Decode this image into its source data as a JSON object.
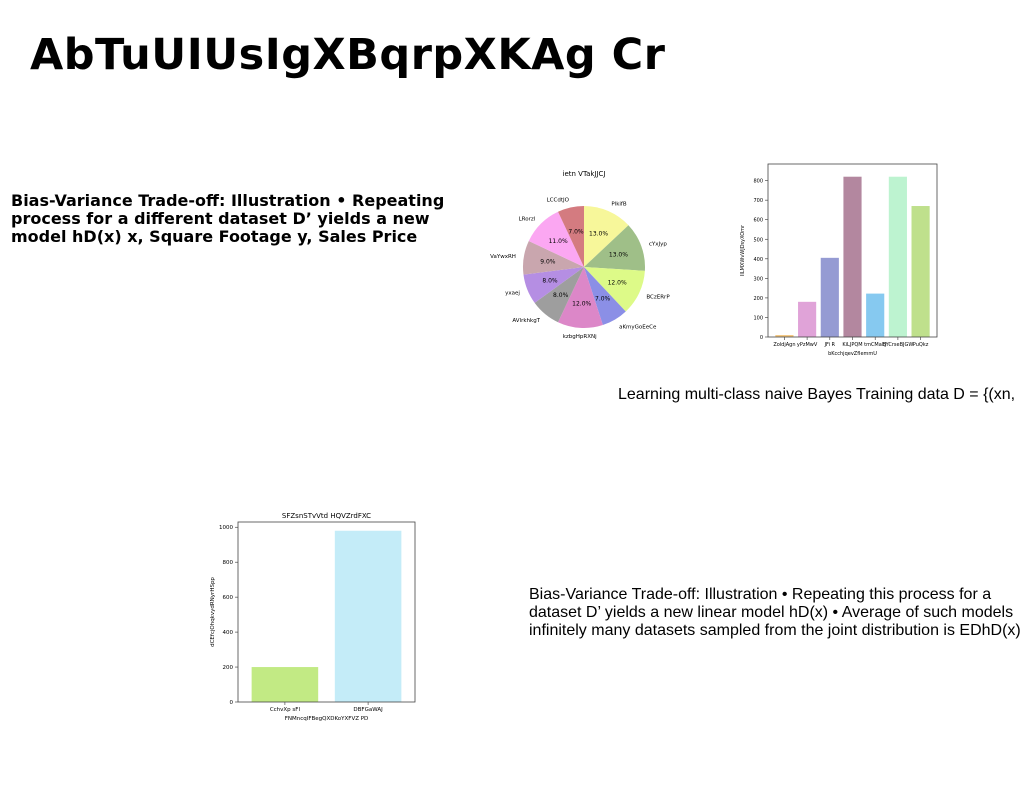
{
  "slide": {
    "title": "AbTuUIUsIgXBqrpXKAg Cr",
    "text_block_1": "Bias-Variance Trade-off: Illustration • Repeating process for a different dataset D’ yields a new model hD(x) x, Square Footage y, Sales Price",
    "text_block_2": "Learning multi-class naive Bayes Training data D = {(xn,",
    "text_block_3": "Bias-Variance Trade-off: Illustration • Repeating this process for a dataset D’ yields a new linear model hD(x) • Average of such models infinitely many datasets sampled from the joint distribution is EDhD(x)"
  },
  "chart_data": [
    {
      "type": "pie",
      "title": "ietn VTakJJCJ",
      "categories": [
        "PlkifB",
        "cYxJyp",
        "BCzERrP",
        "aKmyGoEeCe",
        "kzbgHpRXNj",
        "AVlrkhkgT",
        "yxaej",
        "VaYwxRH",
        "LRorzl",
        "LCCdtJO"
      ],
      "values": [
        13.0,
        13.0,
        12.0,
        7.0,
        12.0,
        8.0,
        8.0,
        9.0,
        11.0,
        7.0
      ],
      "value_labels": [
        "13.0%",
        "13.0%",
        "12.0%",
        "7.0%",
        "12.0%",
        "8.0%",
        "8.0%",
        "9.0%",
        "11.0%",
        "7.0%"
      ],
      "colors": [
        "#f7f79a",
        "#9fbf88",
        "#ddfa88",
        "#8b8fe6",
        "#dc87c8",
        "#9e9e9e",
        "#b58ee3",
        "#c9a6ae",
        "#fba7f2",
        "#d47b80"
      ]
    },
    {
      "type": "bar",
      "title": "",
      "xlabel": "bKcchjqevZfIemmU",
      "ylabel": "IILMXWvWJDsyXOmr",
      "categories": [
        "ZoldjAgn",
        "yPzMwV",
        "JFi R",
        "KiLJPQM",
        "tmCMal J",
        "BYCrseBJGW",
        "PuQkz"
      ],
      "values": [
        10,
        180,
        405,
        820,
        222,
        820,
        670
      ],
      "colors": [
        "#f5c77e",
        "#e0a3d8",
        "#959bd3",
        "#b3879f",
        "#86c9f0",
        "#bdf3d0",
        "#bfe08c"
      ],
      "yticks": [
        0,
        100,
        200,
        300,
        400,
        500,
        600,
        700,
        800
      ],
      "ylim": [
        0,
        885
      ]
    },
    {
      "type": "bar",
      "title": "SFZsnSTvVtd HQVZrdFXC",
      "xlabel": "FNMncqIFBegQXDKoYXFVZ PD",
      "ylabel": "dCEfcjOhqkvydRNyrHSpp",
      "categories": [
        "CchvXp sFl",
        "DBFGaWAJ"
      ],
      "values": [
        200,
        980
      ],
      "colors": [
        "#c2ea84",
        "#c4ecf8"
      ],
      "yticks": [
        0,
        200,
        400,
        600,
        800,
        1000
      ],
      "ylim": [
        0,
        1030
      ]
    }
  ]
}
